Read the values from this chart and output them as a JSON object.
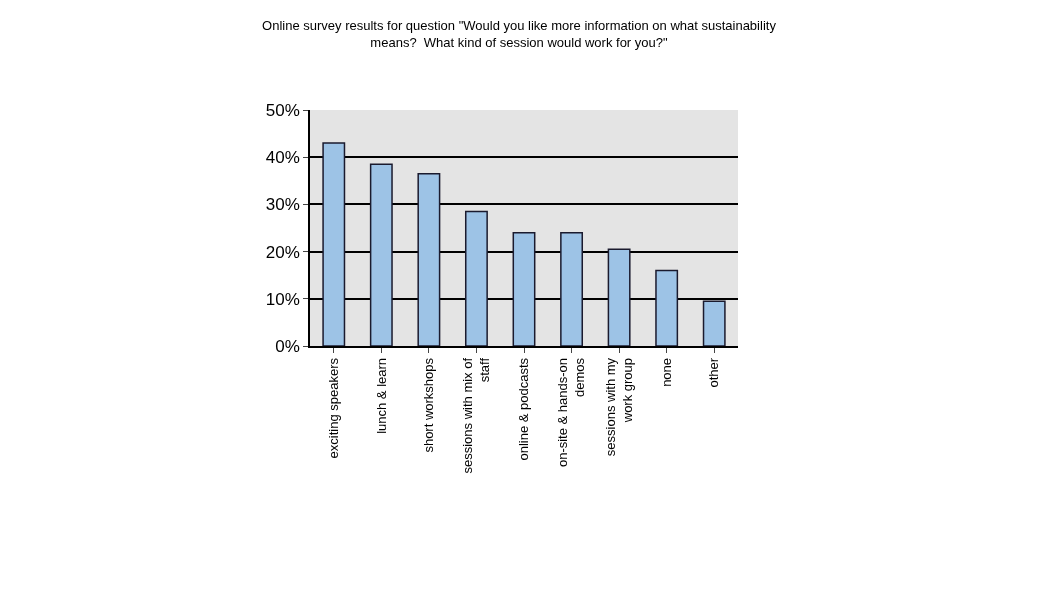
{
  "chart_data": {
    "type": "bar",
    "title": "Online survey results for question \"Would you like more information on what sustainability means?  What kind of session would work for you?\"",
    "categories": [
      "exciting speakers",
      "lunch & learn",
      "short workshops",
      "sessions with mix of staff",
      "online & podcasts",
      "on-site & hands-on demos",
      "sessions with my work group",
      "none",
      "other"
    ],
    "values": [
      43,
      38.5,
      36.5,
      28.5,
      24,
      24,
      20.5,
      16,
      9.5
    ],
    "color": "#9dc3e6",
    "ylim": [
      0,
      50
    ],
    "yticks": [
      {
        "value": 0,
        "label": "0%"
      },
      {
        "value": 10,
        "label": "10%"
      },
      {
        "value": 20,
        "label": "20%"
      },
      {
        "value": 30,
        "label": "30%"
      },
      {
        "value": 40,
        "label": "40%"
      },
      {
        "value": 50,
        "label": "50%"
      }
    ],
    "grid": "y"
  }
}
